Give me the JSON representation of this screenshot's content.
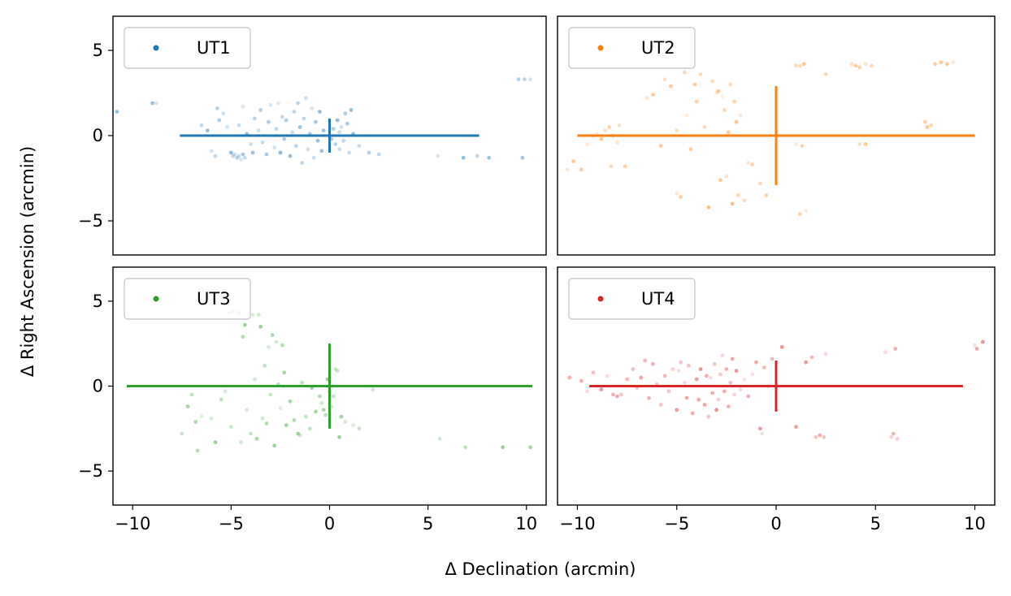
{
  "chart_data": {
    "type": "scatter",
    "xlabel": "Δ Declination (arcmin)",
    "ylabel": "Δ Right Ascension (arcmin)",
    "xlim": [
      -11,
      11
    ],
    "ylim": [
      -7,
      7
    ],
    "xticks": [
      -10,
      -5,
      0,
      5,
      10
    ],
    "yticks": [
      -5,
      0,
      5
    ],
    "grid": false,
    "legend_position": "top-left",
    "panels": [
      {
        "name": "UT1",
        "color": "#1f77b4",
        "errorbar": {
          "x_half": 7.6,
          "y_half": 1.0
        },
        "points": [
          [
            -10.8,
            1.4
          ],
          [
            -9.0,
            1.9
          ],
          [
            -8.8,
            1.9
          ],
          [
            -6.5,
            0.6
          ],
          [
            -6.2,
            0.3
          ],
          [
            -6.0,
            -0.9
          ],
          [
            -5.8,
            -1.2
          ],
          [
            -5.7,
            1.6
          ],
          [
            -5.6,
            0.9
          ],
          [
            -5.4,
            1.3
          ],
          [
            -5.2,
            0.5
          ],
          [
            -5.0,
            -1.0
          ],
          [
            -4.9,
            -1.2
          ],
          [
            -4.8,
            -1.1
          ],
          [
            -4.7,
            -1.3
          ],
          [
            -4.6,
            -1.2
          ],
          [
            -4.5,
            -1.4
          ],
          [
            -4.4,
            -1.1
          ],
          [
            -4.3,
            -1.3
          ],
          [
            -4.6,
            0.6
          ],
          [
            -4.4,
            1.7
          ],
          [
            -4.2,
            0.1
          ],
          [
            -4.0,
            -0.5
          ],
          [
            -3.9,
            -1.0
          ],
          [
            -3.8,
            1.0
          ],
          [
            -3.6,
            0.3
          ],
          [
            -3.5,
            1.5
          ],
          [
            -3.4,
            -0.4
          ],
          [
            -3.2,
            -1.1
          ],
          [
            -3.1,
            0.8
          ],
          [
            -3.0,
            1.8
          ],
          [
            -2.8,
            -0.7
          ],
          [
            -2.7,
            0.4
          ],
          [
            -2.6,
            1.9
          ],
          [
            -2.5,
            -1.0
          ],
          [
            -2.4,
            1.1
          ],
          [
            -2.3,
            -0.2
          ],
          [
            -2.2,
            0.9
          ],
          [
            -2.0,
            -1.2
          ],
          [
            -1.9,
            0.2
          ],
          [
            -1.8,
            1.4
          ],
          [
            -1.7,
            -0.6
          ],
          [
            -1.6,
            1.9
          ],
          [
            -1.5,
            0.5
          ],
          [
            -1.4,
            -1.6
          ],
          [
            -1.3,
            1.0
          ],
          [
            -1.2,
            2.2
          ],
          [
            -1.1,
            -0.8
          ],
          [
            -1.0,
            0.1
          ],
          [
            -0.9,
            1.6
          ],
          [
            -0.8,
            -1.3
          ],
          [
            -0.7,
            0.8
          ],
          [
            -0.6,
            -0.3
          ],
          [
            -0.5,
            1.4
          ],
          [
            -0.4,
            -0.9
          ],
          [
            -0.3,
            0.3
          ],
          [
            0.1,
            -0.2
          ],
          [
            0.2,
            0.4
          ],
          [
            0.3,
            -0.5
          ],
          [
            0.4,
            0.9
          ],
          [
            0.5,
            0.2
          ],
          [
            0.5,
            -0.8
          ],
          [
            0.6,
            0.5
          ],
          [
            0.7,
            -0.3
          ],
          [
            0.8,
            1.3
          ],
          [
            0.9,
            0.7
          ],
          [
            1.0,
            -1.0
          ],
          [
            1.1,
            1.5
          ],
          [
            1.2,
            0.1
          ],
          [
            1.5,
            -0.6
          ],
          [
            2.0,
            -1.0
          ],
          [
            2.5,
            -1.1
          ],
          [
            5.5,
            -1.2
          ],
          [
            6.8,
            -1.3
          ],
          [
            7.5,
            -1.2
          ],
          [
            8.1,
            -1.3
          ],
          [
            9.6,
            3.3
          ],
          [
            9.9,
            3.3
          ],
          [
            10.2,
            3.3
          ],
          [
            9.8,
            -1.3
          ]
        ]
      },
      {
        "name": "UT2",
        "color": "#ff7f0e",
        "errorbar": {
          "x_half": 10.0,
          "y_half": 2.9
        },
        "points": [
          [
            -10.5,
            -2.0
          ],
          [
            -10.2,
            -1.5
          ],
          [
            -9.8,
            -2.0
          ],
          [
            -9.5,
            -0.5
          ],
          [
            -9.2,
            0.0
          ],
          [
            -9.0,
            0.1
          ],
          [
            -8.8,
            -0.2
          ],
          [
            -8.6,
            0.3
          ],
          [
            -8.4,
            0.5
          ],
          [
            -8.2,
            0.0
          ],
          [
            -8.0,
            -0.4
          ],
          [
            -8.3,
            -1.8
          ],
          [
            -7.9,
            0.6
          ],
          [
            -7.6,
            -1.8
          ],
          [
            -6.5,
            2.2
          ],
          [
            -6.2,
            2.4
          ],
          [
            -5.8,
            -0.6
          ],
          [
            -5.6,
            3.3
          ],
          [
            -5.3,
            2.9
          ],
          [
            -5.0,
            0.3
          ],
          [
            -5.0,
            -3.4
          ],
          [
            -4.8,
            -3.6
          ],
          [
            -4.6,
            3.7
          ],
          [
            -4.5,
            1.2
          ],
          [
            -4.3,
            -0.8
          ],
          [
            -4.1,
            3.0
          ],
          [
            -4.0,
            2.0
          ],
          [
            -3.8,
            3.6
          ],
          [
            -3.6,
            0.5
          ],
          [
            -3.4,
            -4.2
          ],
          [
            -3.2,
            3.2
          ],
          [
            -3.0,
            2.5
          ],
          [
            -2.9,
            2.6
          ],
          [
            -2.8,
            -2.6
          ],
          [
            -2.7,
            2.3
          ],
          [
            -2.6,
            1.5
          ],
          [
            -2.5,
            -2.4
          ],
          [
            -2.4,
            0.2
          ],
          [
            -2.3,
            3.0
          ],
          [
            -2.2,
            -4.0
          ],
          [
            -2.1,
            2.0
          ],
          [
            -2.0,
            0.8
          ],
          [
            -1.9,
            -3.5
          ],
          [
            -1.8,
            1.2
          ],
          [
            -1.6,
            -3.8
          ],
          [
            -1.4,
            -1.6
          ],
          [
            -1.2,
            -1.7
          ],
          [
            -0.8,
            -2.8
          ],
          [
            -0.5,
            -3.5
          ],
          [
            1.0,
            4.1
          ],
          [
            1.2,
            4.1
          ],
          [
            1.4,
            4.2
          ],
          [
            1.0,
            -0.5
          ],
          [
            1.3,
            -0.6
          ],
          [
            1.2,
            -4.6
          ],
          [
            1.5,
            -4.4
          ],
          [
            2.5,
            3.6
          ],
          [
            3.8,
            4.2
          ],
          [
            4.0,
            4.1
          ],
          [
            4.2,
            4.0
          ],
          [
            4.5,
            4.2
          ],
          [
            4.8,
            4.1
          ],
          [
            4.2,
            -0.5
          ],
          [
            4.5,
            -0.5
          ],
          [
            7.5,
            0.8
          ],
          [
            7.6,
            0.5
          ],
          [
            7.8,
            0.6
          ],
          [
            8.0,
            4.2
          ],
          [
            8.3,
            4.3
          ],
          [
            8.6,
            4.2
          ],
          [
            8.9,
            4.3
          ]
        ]
      },
      {
        "name": "UT3",
        "color": "#2ca02c",
        "errorbar": {
          "x_half": 10.3,
          "y_half": 2.5
        },
        "points": [
          [
            -7.5,
            -2.8
          ],
          [
            -7.2,
            -1.2
          ],
          [
            -7.0,
            -0.5
          ],
          [
            -6.8,
            -2.1
          ],
          [
            -6.7,
            -3.8
          ],
          [
            -6.5,
            -1.8
          ],
          [
            -6.0,
            -1.9
          ],
          [
            -5.8,
            -3.3
          ],
          [
            -5.5,
            -0.8
          ],
          [
            -5.3,
            -0.3
          ],
          [
            -5.0,
            -2.4
          ],
          [
            -5.1,
            4.3
          ],
          [
            -4.9,
            4.4
          ],
          [
            -4.8,
            4.2
          ],
          [
            -4.6,
            4.3
          ],
          [
            -4.5,
            -3.3
          ],
          [
            -4.4,
            2.9
          ],
          [
            -4.3,
            3.6
          ],
          [
            -4.2,
            -1.4
          ],
          [
            -4.0,
            -2.8
          ],
          [
            -3.9,
            4.2
          ],
          [
            -3.8,
            0.4
          ],
          [
            -3.7,
            -3.1
          ],
          [
            -3.6,
            4.2
          ],
          [
            -3.5,
            3.5
          ],
          [
            -3.4,
            -1.9
          ],
          [
            -3.3,
            1.2
          ],
          [
            -3.2,
            -2.2
          ],
          [
            -3.1,
            2.3
          ],
          [
            -3.0,
            -0.5
          ],
          [
            -2.9,
            3.0
          ],
          [
            -2.8,
            -3.5
          ],
          [
            -2.7,
            2.6
          ],
          [
            -2.6,
            0.1
          ],
          [
            -2.5,
            -1.3
          ],
          [
            -2.4,
            2.4
          ],
          [
            -2.3,
            0.8
          ],
          [
            -2.2,
            -2.3
          ],
          [
            -2.0,
            -0.9
          ],
          [
            -1.8,
            -2.0
          ],
          [
            -1.6,
            -2.8
          ],
          [
            -1.5,
            -2.9
          ],
          [
            -1.4,
            0.2
          ],
          [
            -1.2,
            -1.8
          ],
          [
            -1.0,
            -2.5
          ],
          [
            -0.9,
            -0.1
          ],
          [
            -0.7,
            -1.5
          ],
          [
            -0.5,
            -0.6
          ],
          [
            -0.4,
            -1.0
          ],
          [
            -0.3,
            -1.4
          ],
          [
            -0.2,
            -1.7
          ],
          [
            -0.1,
            0.4
          ],
          [
            0.0,
            -0.3
          ],
          [
            0.1,
            -1.2
          ],
          [
            0.2,
            -0.6
          ],
          [
            0.3,
            1.0
          ],
          [
            0.4,
            0.9
          ],
          [
            0.5,
            -3.0
          ],
          [
            0.6,
            -1.8
          ],
          [
            0.8,
            -2.1
          ],
          [
            1.2,
            -2.3
          ],
          [
            1.5,
            -2.5
          ],
          [
            2.2,
            -0.2
          ],
          [
            5.6,
            -3.1
          ],
          [
            6.9,
            -3.6
          ],
          [
            8.8,
            -3.6
          ],
          [
            10.2,
            -3.6
          ]
        ]
      },
      {
        "name": "UT4",
        "color": "#d62728",
        "errorbar": {
          "x_half": 9.4,
          "y_half": 1.5
        },
        "points": [
          [
            -10.4,
            0.5
          ],
          [
            -9.8,
            0.3
          ],
          [
            -9.5,
            -0.3
          ],
          [
            -9.2,
            0.8
          ],
          [
            -8.8,
            -0.2
          ],
          [
            -8.5,
            0.6
          ],
          [
            -8.2,
            -0.5
          ],
          [
            -8.0,
            -0.6
          ],
          [
            -7.8,
            -0.5
          ],
          [
            -7.5,
            0.4
          ],
          [
            -7.2,
            1.0
          ],
          [
            -7.0,
            -0.1
          ],
          [
            -6.8,
            0.5
          ],
          [
            -6.6,
            1.5
          ],
          [
            -6.4,
            -0.7
          ],
          [
            -6.2,
            1.3
          ],
          [
            -6.0,
            0.1
          ],
          [
            -5.8,
            -1.1
          ],
          [
            -5.6,
            0.6
          ],
          [
            -5.4,
            -0.3
          ],
          [
            -5.2,
            1.0
          ],
          [
            -5.0,
            -1.4
          ],
          [
            -4.9,
            0.9
          ],
          [
            -4.8,
            1.4
          ],
          [
            -4.6,
            0.2
          ],
          [
            -4.5,
            -0.7
          ],
          [
            -4.4,
            1.2
          ],
          [
            -4.2,
            -1.6
          ],
          [
            -4.0,
            0.4
          ],
          [
            -3.9,
            -0.8
          ],
          [
            -3.8,
            1.0
          ],
          [
            -3.6,
            -1.1
          ],
          [
            -3.5,
            0.6
          ],
          [
            -3.4,
            -1.8
          ],
          [
            -3.3,
            0.5
          ],
          [
            -3.2,
            -0.4
          ],
          [
            -3.1,
            1.3
          ],
          [
            -3.0,
            -1.4
          ],
          [
            -2.9,
            -0.8
          ],
          [
            -2.8,
            0.7
          ],
          [
            -2.7,
            1.8
          ],
          [
            -2.6,
            -0.3
          ],
          [
            -2.5,
            1.0
          ],
          [
            -2.4,
            -1.2
          ],
          [
            -2.3,
            0.2
          ],
          [
            -2.2,
            1.6
          ],
          [
            -2.1,
            -0.5
          ],
          [
            -2.0,
            0.9
          ],
          [
            -1.8,
            -0.2
          ],
          [
            -1.6,
            0.4
          ],
          [
            -1.4,
            -0.6
          ],
          [
            -1.2,
            0.7
          ],
          [
            -1.0,
            1.4
          ],
          [
            -0.8,
            -2.5
          ],
          [
            -0.7,
            -2.8
          ],
          [
            -0.6,
            1.1
          ],
          [
            -0.4,
            0.0
          ],
          [
            -0.2,
            1.6
          ],
          [
            0.3,
            2.3
          ],
          [
            1.0,
            -2.4
          ],
          [
            1.5,
            1.4
          ],
          [
            1.8,
            1.7
          ],
          [
            2.0,
            -3.0
          ],
          [
            2.2,
            -2.9
          ],
          [
            2.4,
            -3.0
          ],
          [
            2.5,
            1.9
          ],
          [
            5.5,
            2.0
          ],
          [
            5.8,
            -3.0
          ],
          [
            5.9,
            -2.8
          ],
          [
            6.0,
            2.2
          ],
          [
            6.1,
            -3.1
          ],
          [
            10.0,
            2.4
          ],
          [
            10.1,
            2.2
          ],
          [
            10.4,
            2.6
          ]
        ]
      }
    ]
  }
}
